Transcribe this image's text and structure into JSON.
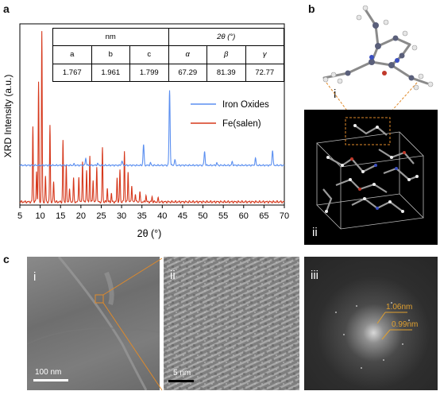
{
  "panel_a": {
    "label": "a",
    "table": {
      "header_nm": "nm",
      "header_angle": "2θ (°)",
      "symbols": [
        "a",
        "b",
        "c",
        "α",
        "β",
        "γ"
      ],
      "values": [
        "1.767",
        "1.961",
        "1.799",
        "67.29",
        "81.39",
        "72.77"
      ]
    }
  },
  "panel_b": {
    "label": "b",
    "sub_i": "i",
    "sub_ii": "ii"
  },
  "panel_c": {
    "label": "c",
    "sub_i": "i",
    "sub_ii": "ii",
    "sub_iii": "iii",
    "scale_i": "100 nm",
    "scale_ii": "5 nm",
    "d_spacing_1": "1.06nm",
    "d_spacing_2": "0.99nm"
  },
  "colors": {
    "iron_oxides": "#5b8ff0",
    "fe_salen": "#d6381c",
    "fft_annotation": "#e0a030",
    "guide_lines": "#e08a2a"
  },
  "chart_data": {
    "type": "line",
    "xlabel": "2θ (°)",
    "ylabel": "XRD Intensity (a.u.)",
    "xlim": [
      5,
      70
    ],
    "xticks": [
      5,
      10,
      15,
      20,
      25,
      30,
      35,
      40,
      45,
      50,
      55,
      60,
      65,
      70
    ],
    "legend_position": "right",
    "series": [
      {
        "name": "Iron Oxides",
        "color": "#5b8ff0",
        "peaks": [
          [
            18.3,
            0.01
          ],
          [
            21.2,
            0.06
          ],
          [
            24.1,
            0.015
          ],
          [
            30.1,
            0.04
          ],
          [
            35.4,
            0.18
          ],
          [
            37.1,
            0.02
          ],
          [
            41.8,
            0.65
          ],
          [
            43.1,
            0.05
          ],
          [
            50.4,
            0.12
          ],
          [
            53.4,
            0.02
          ],
          [
            57.2,
            0.03
          ],
          [
            62.9,
            0.06
          ],
          [
            67.1,
            0.13
          ]
        ]
      },
      {
        "name": "Fe(salen)",
        "color": "#d6381c",
        "peaks": [
          [
            8.2,
            0.44
          ],
          [
            9.1,
            0.18
          ],
          [
            9.6,
            0.7
          ],
          [
            10.4,
            1.0
          ],
          [
            11.3,
            0.15
          ],
          [
            12.4,
            0.45
          ],
          [
            13.3,
            0.12
          ],
          [
            15.6,
            0.36
          ],
          [
            16.4,
            0.21
          ],
          [
            17.2,
            0.08
          ],
          [
            18.2,
            0.14
          ],
          [
            19.5,
            0.15
          ],
          [
            20.4,
            0.24
          ],
          [
            21.4,
            0.19
          ],
          [
            22.2,
            0.27
          ],
          [
            23.0,
            0.13
          ],
          [
            23.9,
            0.21
          ],
          [
            25.3,
            0.32
          ],
          [
            26.5,
            0.08
          ],
          [
            27.5,
            0.05
          ],
          [
            28.9,
            0.14
          ],
          [
            29.6,
            0.19
          ],
          [
            30.7,
            0.3
          ],
          [
            31.6,
            0.18
          ],
          [
            32.5,
            0.1
          ],
          [
            33.4,
            0.05
          ],
          [
            34.5,
            0.06
          ],
          [
            36.0,
            0.04
          ],
          [
            37.5,
            0.03
          ],
          [
            39.0,
            0.02
          ]
        ]
      }
    ]
  }
}
